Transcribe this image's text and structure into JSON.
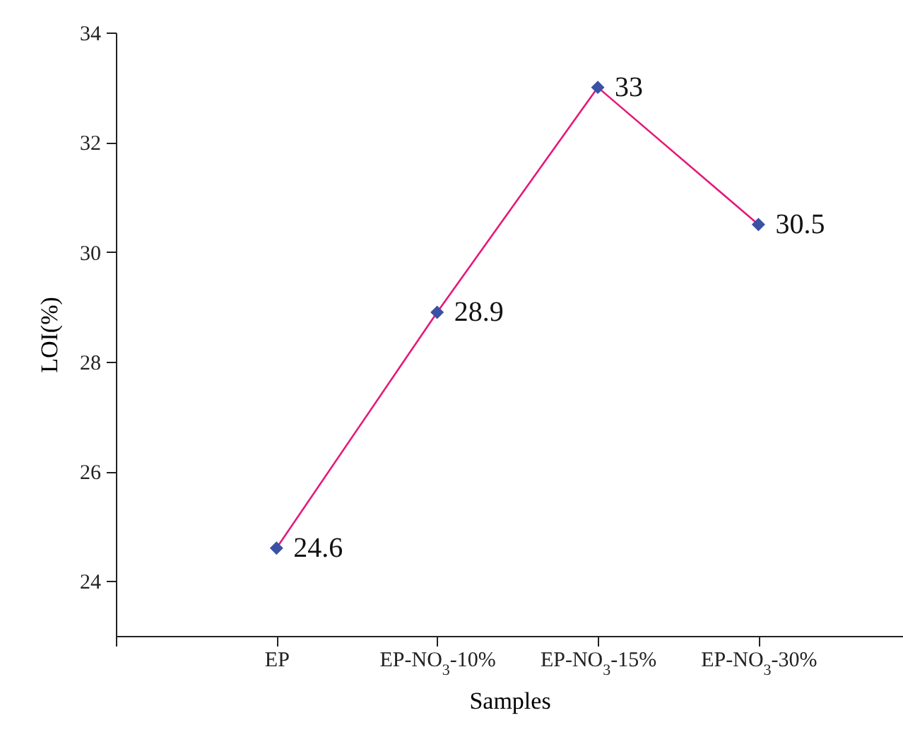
{
  "chart_data": {
    "type": "line",
    "xlabel": "Samples",
    "ylabel": "LOI(%)",
    "categories": [
      null,
      "EP",
      "EP-NO$_{3}$-10%",
      "EP-NO$_{3}$-15%",
      "EP-NO$_{3}$-30%"
    ],
    "series": [
      {
        "color": "#e5197a",
        "colors": [
          "#3a52a3",
          "#3a52a3",
          "#3a52a3",
          "#3a52a3",
          "#3a52a3"
        ],
        "values": [
          null,
          24.6,
          28.9,
          33,
          30.5
        ]
      }
    ],
    "ylim": [
      23,
      34
    ],
    "yticks": [
      24,
      26,
      28,
      30,
      32,
      34
    ],
    "marker": "diamond",
    "line_style": "solid",
    "data_labels": true,
    "grid": false
  }
}
